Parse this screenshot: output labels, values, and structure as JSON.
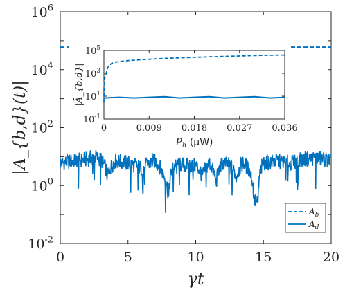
{
  "chart_data": [
    {
      "type": "line",
      "xlabel": "γt",
      "ylabel": "|A_{b,d}(t)|",
      "xlim": [
        0,
        20
      ],
      "ylim_log10": [
        -2,
        6
      ],
      "yscale": "log",
      "x_ticks": [
        "0",
        "5",
        "10",
        "15",
        "20"
      ],
      "y_ticks": [
        {
          "base": "10",
          "exp": "-2"
        },
        {
          "base": "10",
          "exp": "0"
        },
        {
          "base": "10",
          "exp": "2"
        },
        {
          "base": "10",
          "exp": "4"
        },
        {
          "base": "10",
          "exp": "6"
        }
      ],
      "legend_position": "bottom-right",
      "series": [
        {
          "name": "A_b",
          "label_main": "A",
          "label_sub": "b",
          "style": "dashed",
          "color": "#0072BD",
          "x": [
            0,
            20
          ],
          "y": [
            60000,
            60000
          ]
        },
        {
          "name": "A_d",
          "label_main": "A",
          "label_sub": "d",
          "style": "solid",
          "color": "#0072BD",
          "x": [
            0,
            1,
            2,
            2.5,
            3,
            3.5,
            4,
            5,
            6,
            7,
            7.5,
            8,
            8.5,
            9,
            10,
            10.5,
            11,
            11.5,
            12,
            12.5,
            13,
            13.5,
            14,
            14.3,
            14.6,
            15,
            16,
            17,
            18,
            19,
            20
          ],
          "y": [
            6,
            7,
            8,
            10,
            8,
            2,
            7,
            6,
            4,
            7,
            3,
            0.35,
            6,
            5,
            5,
            2,
            6,
            1.2,
            6,
            5,
            2,
            6,
            3,
            0.3,
            0.25,
            6,
            7,
            6,
            8,
            9,
            7
          ]
        }
      ]
    },
    {
      "type": "line",
      "role": "inset",
      "xlabel": "P_h (μW)",
      "xlabel_main": "P",
      "xlabel_sub": "h",
      "xlabel_unit": " (μW)",
      "ylabel": "|Ā_{b,d}|",
      "xlim": [
        0,
        0.036
      ],
      "ylim_log10": [
        -1,
        5
      ],
      "yscale": "log",
      "x_ticks": [
        "0",
        "0.009",
        "0.018",
        "0.027",
        "0.036"
      ],
      "y_ticks": [
        {
          "base": "10",
          "exp": "-1"
        },
        {
          "base": "10",
          "exp": "1"
        },
        {
          "base": "10",
          "exp": "3"
        },
        {
          "base": "10",
          "exp": "5"
        }
      ],
      "series": [
        {
          "name": "A_b",
          "style": "dashed",
          "color": "#0072BD",
          "x": [
            0,
            0.0005,
            0.001,
            0.002,
            0.004,
            0.008,
            0.012,
            0.018,
            0.024,
            0.03,
            0.036
          ],
          "y": [
            3,
            1000,
            5000,
            9000,
            12000,
            16000,
            20000,
            25000,
            30000,
            36000,
            40000
          ]
        },
        {
          "name": "A_d",
          "style": "solid",
          "color": "#0072BD",
          "x": [
            0,
            0.003,
            0.006,
            0.009,
            0.012,
            0.015,
            0.018,
            0.021,
            0.024,
            0.027,
            0.03,
            0.033,
            0.036
          ],
          "y": [
            7,
            8,
            7,
            8,
            9,
            7,
            8,
            9,
            7,
            8,
            9,
            7,
            8
          ]
        }
      ]
    }
  ]
}
